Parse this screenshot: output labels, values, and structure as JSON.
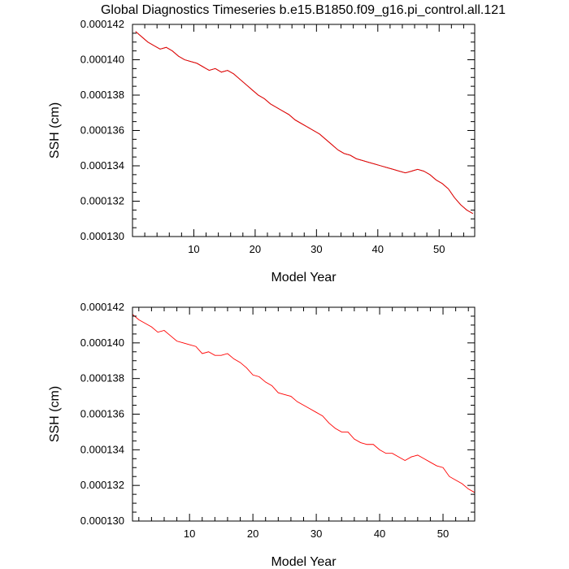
{
  "title": "Global Diagnostics Timeseries b.e15.B1850.f09_g16.pi_control.all.121",
  "colors": {
    "monthly": "#000000",
    "annual": "#ff0000"
  },
  "chart_data": [
    {
      "type": "line",
      "xlabel": "Model Year",
      "ylabel": "SSH (cm)",
      "xlim": [
        0.0,
        55.8
      ],
      "ylim": [
        0.00013,
        0.000142
      ],
      "xticks": [
        "10",
        "20",
        "30",
        "40",
        "50"
      ],
      "yticks": [
        "0.000130",
        "0.000132",
        "0.000134",
        "0.000136",
        "0.000138",
        "0.000140",
        "0.000142"
      ],
      "series": [
        {
          "style": "monthly",
          "x": [
            0.5,
            1.5,
            2.5,
            3.5,
            4.5,
            5.5,
            6.5,
            7.5,
            8.5,
            9.5,
            10.5,
            11.5,
            12.5,
            13.5,
            14.5,
            15.5,
            16.5,
            17.5,
            18.5,
            19.5,
            20.5,
            21.5,
            22.5,
            23.5,
            24.5,
            25.5,
            26.5,
            27.5,
            28.5,
            29.5,
            30.5,
            31.5,
            32.5,
            33.5,
            34.5,
            35.5,
            36.5,
            37.5,
            38.5,
            39.5,
            40.5,
            41.5,
            42.5,
            43.5,
            44.5,
            45.5,
            46.5,
            47.5,
            48.5,
            49.5,
            50.5,
            51.5,
            52.5,
            53.5,
            54.5,
            55.5
          ],
          "y": [
            0.0001416,
            0.0001413,
            0.000141,
            0.0001408,
            0.0001406,
            0.0001407,
            0.0001405,
            0.0001402,
            0.00014,
            0.0001399,
            0.0001398,
            0.0001396,
            0.0001394,
            0.0001395,
            0.0001393,
            0.0001394,
            0.0001392,
            0.0001389,
            0.0001386,
            0.0001383,
            0.000138,
            0.0001378,
            0.0001375,
            0.0001373,
            0.0001371,
            0.0001369,
            0.0001366,
            0.0001364,
            0.0001362,
            0.000136,
            0.0001358,
            0.0001355,
            0.0001352,
            0.0001349,
            0.0001347,
            0.0001346,
            0.0001344,
            0.0001343,
            0.0001342,
            0.0001341,
            0.000134,
            0.0001339,
            0.0001338,
            0.0001337,
            0.0001336,
            0.0001337,
            0.0001338,
            0.0001337,
            0.0001335,
            0.0001332,
            0.000133,
            0.0001327,
            0.0001322,
            0.0001318,
            0.0001315,
            0.0001313
          ]
        },
        {
          "style": "annual",
          "x": [
            0.5,
            1.5,
            2.5,
            3.5,
            4.5,
            5.5,
            6.5,
            7.5,
            8.5,
            9.5,
            10.5,
            11.5,
            12.5,
            13.5,
            14.5,
            15.5,
            16.5,
            17.5,
            18.5,
            19.5,
            20.5,
            21.5,
            22.5,
            23.5,
            24.5,
            25.5,
            26.5,
            27.5,
            28.5,
            29.5,
            30.5,
            31.5,
            32.5,
            33.5,
            34.5,
            35.5,
            36.5,
            37.5,
            38.5,
            39.5,
            40.5,
            41.5,
            42.5,
            43.5,
            44.5,
            45.5,
            46.5,
            47.5,
            48.5,
            49.5,
            50.5,
            51.5,
            52.5,
            53.5,
            54.5,
            55.5
          ],
          "y": [
            0.0001416,
            0.0001413,
            0.000141,
            0.0001408,
            0.0001406,
            0.0001407,
            0.0001405,
            0.0001402,
            0.00014,
            0.0001399,
            0.0001398,
            0.0001396,
            0.0001394,
            0.0001395,
            0.0001393,
            0.0001394,
            0.0001392,
            0.0001389,
            0.0001386,
            0.0001383,
            0.000138,
            0.0001378,
            0.0001375,
            0.0001373,
            0.0001371,
            0.0001369,
            0.0001366,
            0.0001364,
            0.0001362,
            0.000136,
            0.0001358,
            0.0001355,
            0.0001352,
            0.0001349,
            0.0001347,
            0.0001346,
            0.0001344,
            0.0001343,
            0.0001342,
            0.0001341,
            0.000134,
            0.0001339,
            0.0001338,
            0.0001337,
            0.0001336,
            0.0001337,
            0.0001338,
            0.0001337,
            0.0001335,
            0.0001332,
            0.000133,
            0.0001327,
            0.0001322,
            0.0001318,
            0.0001315,
            0.0001313
          ]
        }
      ]
    },
    {
      "type": "line",
      "xlabel": "Model Year",
      "ylabel": "SSH (cm)",
      "xlim": [
        1.0,
        55.0
      ],
      "ylim": [
        0.00013,
        0.000142
      ],
      "xticks": [
        "10",
        "20",
        "30",
        "40",
        "50"
      ],
      "yticks": [
        "0.000130",
        "0.000132",
        "0.000134",
        "0.000136",
        "0.000138",
        "0.000140",
        "0.000142"
      ],
      "series": [
        {
          "style": "annual",
          "x": [
            1,
            2,
            3,
            4,
            5,
            6,
            7,
            8,
            9,
            10,
            11,
            12,
            13,
            14,
            15,
            16,
            17,
            18,
            19,
            20,
            21,
            22,
            23,
            24,
            25,
            26,
            27,
            28,
            29,
            30,
            31,
            32,
            33,
            34,
            35,
            36,
            37,
            38,
            39,
            40,
            41,
            42,
            43,
            44,
            45,
            46,
            47,
            48,
            49,
            50,
            51,
            52,
            53,
            54,
            55
          ],
          "y": [
            0.0001416,
            0.0001413,
            0.0001411,
            0.0001409,
            0.0001406,
            0.0001407,
            0.0001404,
            0.0001401,
            0.00014,
            0.0001399,
            0.0001398,
            0.0001394,
            0.0001395,
            0.0001393,
            0.0001393,
            0.0001394,
            0.0001391,
            0.0001389,
            0.0001386,
            0.0001382,
            0.0001381,
            0.0001378,
            0.0001376,
            0.0001372,
            0.0001371,
            0.000137,
            0.0001367,
            0.0001365,
            0.0001363,
            0.0001361,
            0.0001359,
            0.0001355,
            0.0001352,
            0.000135,
            0.000135,
            0.0001346,
            0.0001344,
            0.0001343,
            0.0001343,
            0.000134,
            0.0001338,
            0.0001338,
            0.0001336,
            0.0001334,
            0.0001336,
            0.0001337,
            0.0001335,
            0.0001333,
            0.0001331,
            0.000133,
            0.0001325,
            0.0001323,
            0.0001321,
            0.0001318,
            0.0001316
          ]
        }
      ]
    }
  ]
}
